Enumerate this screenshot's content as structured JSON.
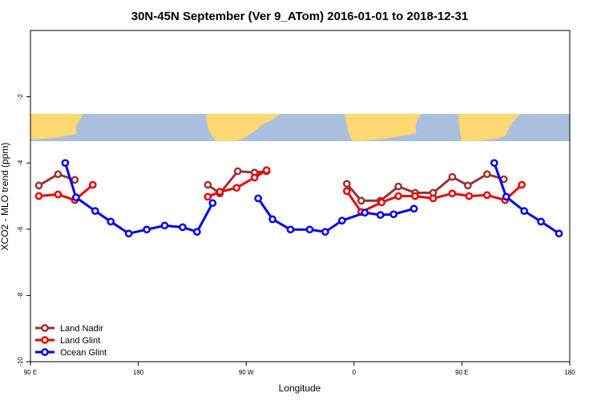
{
  "chart_data": {
    "type": "line",
    "title": "30N-45N September (Ver 9_ATom)   2016-01-01 to 2018-12-31",
    "x_label": "Longitude",
    "y_label": "XCO2 - MLO trend (ppm)",
    "xlim": [
      90,
      540
    ],
    "xticks": [
      {
        "value": 90,
        "label": "90 E"
      },
      180,
      {
        "value": 270,
        "label": "90 W"
      },
      {
        "value": 360,
        "label": "0"
      },
      {
        "value": 450,
        "label": "90 E"
      },
      {
        "value": 540,
        "label": "180"
      }
    ],
    "ylim": [
      -10,
      0
    ],
    "yticks": [
      -10,
      -8,
      -6,
      -4,
      -2
    ],
    "legend": "bottom left",
    "series": [
      {
        "name": "Land Nadir",
        "color": "#993333",
        "x": [
          97,
          113,
          127,
          null,
          238,
          248,
          263,
          277,
          287,
          null,
          354,
          366,
          382,
          397,
          411,
          426,
          442,
          455,
          471,
          485
        ],
        "values": [
          -4.68,
          -4.34,
          -4.51,
          null,
          -4.66,
          -4.92,
          -4.25,
          -4.29,
          -4.25,
          null,
          -4.63,
          -5.14,
          -5.14,
          -4.71,
          -4.9,
          -4.9,
          -4.42,
          -4.68,
          -4.34,
          -4.49
        ]
      },
      {
        "name": "Land Glint",
        "color": "#ee0000",
        "x": [
          97,
          113,
          127,
          142,
          null,
          238,
          248,
          262,
          277,
          287,
          null,
          354,
          366,
          383,
          397,
          411,
          426,
          442,
          456,
          471,
          486,
          500
        ],
        "values": [
          -5.0,
          -4.95,
          -5.12,
          -4.66,
          null,
          -5.02,
          -4.87,
          -4.75,
          -4.44,
          -4.22,
          null,
          -4.85,
          -5.48,
          -5.19,
          -5.0,
          -5.0,
          -5.07,
          -4.92,
          -5.0,
          -4.97,
          -5.12,
          -4.66
        ]
      },
      {
        "name": "Ocean Glint",
        "color": "#0000ee",
        "x": [
          119,
          128,
          144,
          157,
          172,
          187,
          202,
          217,
          229,
          242,
          null,
          280,
          292,
          307,
          323,
          336,
          350,
          369,
          382,
          393,
          410,
          null,
          477,
          487,
          502,
          516,
          531
        ],
        "values": [
          -4.0,
          -5.04,
          -5.45,
          -5.77,
          -6.13,
          -6.01,
          -5.89,
          -5.94,
          -6.08,
          -5.21,
          null,
          -5.07,
          -5.7,
          -6.01,
          -6.01,
          -6.08,
          -5.74,
          -5.5,
          -5.57,
          -5.55,
          -5.38,
          null,
          -4.0,
          -5.02,
          -5.45,
          -5.77,
          -6.13
        ]
      }
    ]
  }
}
